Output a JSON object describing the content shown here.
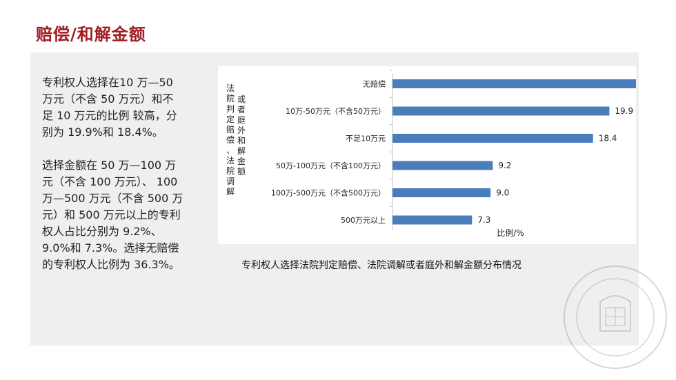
{
  "title": "赔偿/和解金额",
  "paragraphs": [
    "专利权人选择在10 万—50\n万元（不含 50 万元）和不\n足 10 万元的比例 较高，分\n别为 19.9%和 18.4%。",
    "选择金额在 50 万—100 万\n元（不含 100 万元）、 100\n万—500 万元（不含 500 万\n元）和 500 万元以上的专利\n权人占比分别为 9.2%、\n9.0%和 7.3%。选择无赔偿\n的专利权人比例为 36.3%。"
  ],
  "caption": "专利权人选择法院判定赔偿、法院调解或者庭外和解金额分布情况",
  "chart_data": {
    "type": "bar",
    "orientation": "horizontal",
    "categories": [
      "无赔偿",
      "10万-50万元（不含50万元）",
      "不足10万元",
      "50万-100万元（不含100万元）",
      "100万-500万元（不含500万元）",
      "500万元以上"
    ],
    "values": [
      36.3,
      19.9,
      18.4,
      9.2,
      9.0,
      7.3
    ],
    "value_labels": [
      "36.3",
      "19.9",
      "18.4",
      "9.2",
      "9.0",
      "7.3"
    ],
    "xlabel": "比例/%",
    "ylabel": "法院判定赔偿、法院调解或者庭外和解金额",
    "bar_color": "#4a7ebb",
    "grid": false
  },
  "watermark": {
    "text": "SICHUAN UNIVERSITY LIBRARY",
    "year": "1704",
    "cn": "四川大学图书馆"
  }
}
